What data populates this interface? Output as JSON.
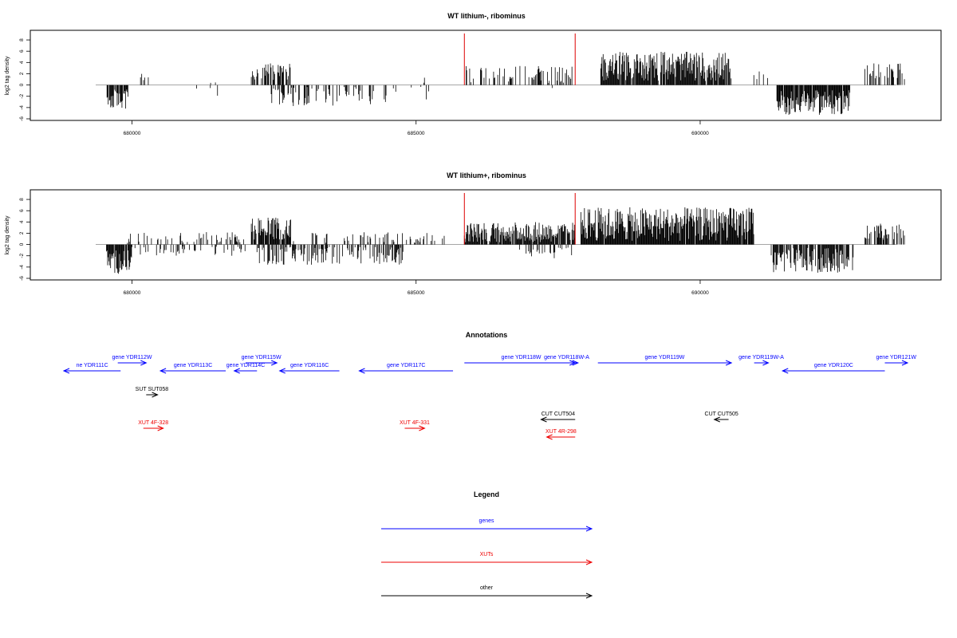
{
  "chart_data": [
    {
      "type": "bar",
      "title": "WT lithium-, ribominus",
      "xlabel": "",
      "ylabel": "log2 tag density",
      "xlim": [
        678800,
        693650
      ],
      "ylim": [
        -6,
        9
      ],
      "yticks": [
        -6,
        -4,
        -2,
        0,
        2,
        4,
        6,
        8
      ],
      "xticks": [
        680000,
        685000,
        690000
      ],
      "xtick_labels": [
        "680000",
        "685000",
        "690000"
      ],
      "marker_lines": [
        685850,
        687800
      ],
      "marker_color": "#dd0000",
      "density_segments": [
        {
          "start": 679550,
          "end": 679950,
          "mean": -2.5,
          "amp": 2.0,
          "fill": 0.9
        },
        {
          "start": 680150,
          "end": 680300,
          "mean": 1.2,
          "amp": 0.8,
          "fill": 0.25
        },
        {
          "start": 680600,
          "end": 681700,
          "mean": -1.0,
          "amp": 1.0,
          "fill": 0.08
        },
        {
          "start": 681300,
          "end": 681500,
          "mean": 0.8,
          "amp": 0.8,
          "fill": 0.08
        },
        {
          "start": 682100,
          "end": 682800,
          "mean": 2.4,
          "amp": 1.5,
          "fill": 0.45
        },
        {
          "start": 682450,
          "end": 684500,
          "mean": -2.0,
          "amp": 1.8,
          "fill": 0.3
        },
        {
          "start": 684600,
          "end": 685300,
          "mean": -1.2,
          "amp": 1.5,
          "fill": 0.15
        },
        {
          "start": 685000,
          "end": 685200,
          "mean": 0.8,
          "amp": 0.6,
          "fill": 0.1
        },
        {
          "start": 685880,
          "end": 687750,
          "mean": 1.8,
          "amp": 1.6,
          "fill": 0.3
        },
        {
          "start": 687300,
          "end": 687500,
          "mean": -1.5,
          "amp": 1.0,
          "fill": 0.1
        },
        {
          "start": 688250,
          "end": 690550,
          "mean": 3.3,
          "amp": 2.6,
          "fill": 0.92
        },
        {
          "start": 690850,
          "end": 691200,
          "mean": 1.2,
          "amp": 1.2,
          "fill": 0.08
        },
        {
          "start": 691350,
          "end": 692650,
          "mean": -3.1,
          "amp": 2.2,
          "fill": 0.92
        },
        {
          "start": 692900,
          "end": 693600,
          "mean": 2.4,
          "amp": 1.6,
          "fill": 0.4
        }
      ]
    },
    {
      "type": "bar",
      "title": "WT lithium+, ribominus",
      "xlabel": "",
      "ylabel": "log2 tag density",
      "xlim": [
        678800,
        693650
      ],
      "ylim": [
        -6,
        9
      ],
      "yticks": [
        -6,
        -4,
        -2,
        0,
        2,
        4,
        6,
        8
      ],
      "xticks": [
        680000,
        685000,
        690000
      ],
      "xtick_labels": [
        "680000",
        "685000",
        "690000"
      ],
      "marker_lines": [
        685850,
        687800
      ],
      "marker_color": "#dd0000",
      "density_segments": [
        {
          "start": 679550,
          "end": 680000,
          "mean": -3.0,
          "amp": 2.2,
          "fill": 0.92
        },
        {
          "start": 679900,
          "end": 682000,
          "mean": 1.2,
          "amp": 1.0,
          "fill": 0.2
        },
        {
          "start": 680000,
          "end": 682000,
          "mean": -1.0,
          "amp": 1.0,
          "fill": 0.25
        },
        {
          "start": 682100,
          "end": 682800,
          "mean": 2.8,
          "amp": 2.0,
          "fill": 0.85
        },
        {
          "start": 682200,
          "end": 684800,
          "mean": -2.0,
          "amp": 1.6,
          "fill": 0.4
        },
        {
          "start": 682800,
          "end": 685500,
          "mean": 1.2,
          "amp": 1.0,
          "fill": 0.2
        },
        {
          "start": 685850,
          "end": 687800,
          "mean": 2.2,
          "amp": 1.8,
          "fill": 0.85
        },
        {
          "start": 686800,
          "end": 687800,
          "mean": -1.5,
          "amp": 1.0,
          "fill": 0.25
        },
        {
          "start": 687900,
          "end": 690950,
          "mean": 3.6,
          "amp": 3.0,
          "fill": 0.96
        },
        {
          "start": 691250,
          "end": 692700,
          "mean": -2.8,
          "amp": 2.2,
          "fill": 0.8
        },
        {
          "start": 692900,
          "end": 693600,
          "mean": 2.2,
          "amp": 1.5,
          "fill": 0.6
        }
      ]
    }
  ],
  "annotations": {
    "title": "Annotations",
    "features": [
      {
        "label": "ne YDR111C",
        "start": 678800,
        "end": 679800,
        "dir": "-",
        "row": 1,
        "color": "#0000ff"
      },
      {
        "label": "gene YDR112W",
        "start": 679750,
        "end": 680250,
        "dir": "+",
        "row": 0,
        "color": "#0000ff"
      },
      {
        "label": "gene YDR113C",
        "start": 680500,
        "end": 681650,
        "dir": "-",
        "row": 1,
        "color": "#0000ff"
      },
      {
        "label": "gene YDR114C",
        "start": 681800,
        "end": 682200,
        "dir": "-",
        "row": 1,
        "color": "#0000ff"
      },
      {
        "label": "gene YDR115W",
        "start": 682000,
        "end": 682550,
        "dir": "+",
        "row": 0,
        "color": "#0000ff"
      },
      {
        "label": "gene YDR116C",
        "start": 682600,
        "end": 683650,
        "dir": "-",
        "row": 1,
        "color": "#0000ff"
      },
      {
        "label": "gene YDR117C",
        "start": 684000,
        "end": 685650,
        "dir": "-",
        "row": 1,
        "color": "#0000ff"
      },
      {
        "label": "gene YDR118W",
        "start": 685850,
        "end": 687850,
        "dir": "+",
        "row": 0,
        "color": "#0000ff"
      },
      {
        "label": "gene YDR118W-A",
        "start": 687500,
        "end": 687800,
        "dir": "+",
        "row": 0,
        "color": "#0000ff"
      },
      {
        "label": "gene YDR119W",
        "start": 688200,
        "end": 690550,
        "dir": "+",
        "row": 0,
        "color": "#0000ff"
      },
      {
        "label": "gene YDR119W-A",
        "start": 690950,
        "end": 691200,
        "dir": "+",
        "row": 0,
        "color": "#0000ff"
      },
      {
        "label": "gene YDR120C",
        "start": 691450,
        "end": 693250,
        "dir": "-",
        "row": 1,
        "color": "#0000ff"
      },
      {
        "label": "gene YDR121W",
        "start": 693250,
        "end": 693650,
        "dir": "+",
        "row": 0,
        "color": "#0000ff"
      },
      {
        "label": "SUT SUT058",
        "start": 680250,
        "end": 680450,
        "dir": "+",
        "row": 2,
        "color": "#000000"
      },
      {
        "label": "XUT 4F-328",
        "start": 680200,
        "end": 680550,
        "dir": "+",
        "row": 3,
        "color": "#ee0000"
      },
      {
        "label": "XUT 4F-331",
        "start": 684800,
        "end": 685150,
        "dir": "+",
        "row": 3,
        "color": "#ee0000"
      },
      {
        "label": "CUT CUT504",
        "start": 687200,
        "end": 687800,
        "dir": "-",
        "row": 4,
        "color": "#000000"
      },
      {
        "label": "XUT 4R-298",
        "start": 687300,
        "end": 687800,
        "dir": "-",
        "row": 5,
        "color": "#ee0000"
      },
      {
        "label": "CUT CUT505",
        "start": 690250,
        "end": 690500,
        "dir": "-",
        "row": 4,
        "color": "#000000"
      }
    ]
  },
  "legend": {
    "title": "Legend",
    "items": [
      {
        "label": "genes",
        "color": "#0000ff"
      },
      {
        "label": "XUTs",
        "color": "#ee0000"
      },
      {
        "label": "other",
        "color": "#000000"
      }
    ]
  }
}
